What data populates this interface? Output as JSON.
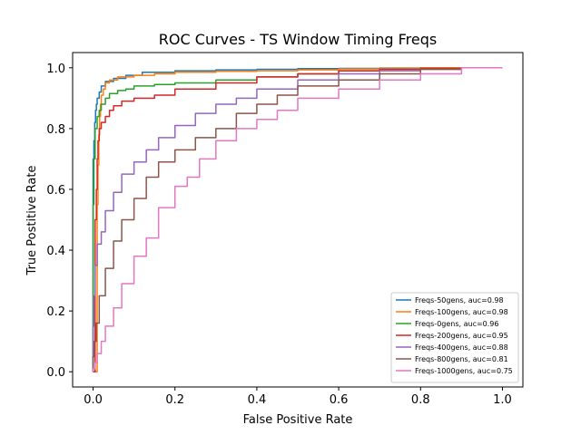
{
  "chart_data": {
    "type": "line",
    "title": "ROC Curves - TS Window Timing Freqs",
    "xlabel": "False Positive Rate",
    "ylabel": "True Postitive Rate",
    "xlim": [
      -0.05,
      1.05
    ],
    "ylim": [
      -0.05,
      1.05
    ],
    "xticks": [
      "0.0",
      "0.2",
      "0.4",
      "0.6",
      "0.8",
      "1.0"
    ],
    "yticks": [
      "0.0",
      "0.2",
      "0.4",
      "0.6",
      "0.8",
      "1.0"
    ],
    "grid": false,
    "legend_position": "lower-right",
    "series": [
      {
        "name": "Freqs-50gens, auc=0.98",
        "color": "#1f77b4",
        "x": [
          0,
          0,
          0.002,
          0.004,
          0.006,
          0.008,
          0.01,
          0.015,
          0.02,
          0.03,
          0.05,
          0.08,
          0.12,
          0.2,
          0.3,
          0.4,
          0.5,
          0.6,
          0.7,
          0.8,
          0.9,
          1.0
        ],
        "y": [
          0,
          0.6,
          0.7,
          0.76,
          0.82,
          0.86,
          0.88,
          0.9,
          0.92,
          0.94,
          0.955,
          0.965,
          0.975,
          0.985,
          0.99,
          0.993,
          0.995,
          0.997,
          0.998,
          0.999,
          1.0,
          1.0
        ]
      },
      {
        "name": "Freqs-100gens, auc=0.98",
        "color": "#ff7f0e",
        "x": [
          0,
          0.01,
          0.012,
          0.014,
          0.016,
          0.018,
          0.02,
          0.025,
          0.03,
          0.04,
          0.06,
          0.1,
          0.15,
          0.2,
          0.3,
          0.4,
          0.5,
          0.6,
          0.7,
          0.8,
          0.9,
          1.0
        ],
        "y": [
          0,
          0.0,
          0.55,
          0.68,
          0.78,
          0.84,
          0.88,
          0.91,
          0.93,
          0.95,
          0.96,
          0.97,
          0.975,
          0.98,
          0.985,
          0.988,
          0.99,
          0.993,
          0.996,
          0.998,
          1.0,
          1.0
        ]
      },
      {
        "name": "Freqs-0gens, auc=0.96",
        "color": "#2ca02c",
        "x": [
          0,
          0,
          0.002,
          0.005,
          0.01,
          0.015,
          0.02,
          0.03,
          0.04,
          0.06,
          0.08,
          0.1,
          0.15,
          0.2,
          0.3,
          0.4,
          0.5,
          0.6,
          0.7,
          0.8,
          0.9,
          1.0
        ],
        "y": [
          0,
          0.3,
          0.55,
          0.7,
          0.8,
          0.84,
          0.86,
          0.88,
          0.9,
          0.915,
          0.925,
          0.93,
          0.94,
          0.945,
          0.95,
          0.96,
          0.97,
          0.98,
          0.99,
          0.995,
          0.998,
          1.0
        ]
      },
      {
        "name": "Freqs-200gens, auc=0.95",
        "color": "#d62728",
        "x": [
          0,
          0.005,
          0.008,
          0.01,
          0.012,
          0.015,
          0.02,
          0.03,
          0.04,
          0.05,
          0.07,
          0.1,
          0.15,
          0.2,
          0.3,
          0.4,
          0.5,
          0.6,
          0.7,
          0.8,
          0.9,
          1.0
        ],
        "y": [
          0,
          0.0,
          0.5,
          0.6,
          0.7,
          0.76,
          0.8,
          0.82,
          0.84,
          0.86,
          0.875,
          0.89,
          0.9,
          0.91,
          0.93,
          0.95,
          0.97,
          0.98,
          0.99,
          0.995,
          0.998,
          1.0
        ]
      },
      {
        "name": "Freqs-400gens, auc=0.88",
        "color": "#9467bd",
        "x": [
          0,
          0.002,
          0.005,
          0.01,
          0.02,
          0.03,
          0.05,
          0.07,
          0.1,
          0.13,
          0.16,
          0.2,
          0.25,
          0.3,
          0.35,
          0.4,
          0.5,
          0.6,
          0.7,
          0.8,
          0.9,
          1.0
        ],
        "y": [
          0,
          0.15,
          0.25,
          0.35,
          0.42,
          0.46,
          0.53,
          0.59,
          0.65,
          0.69,
          0.73,
          0.77,
          0.81,
          0.85,
          0.88,
          0.9,
          0.93,
          0.96,
          0.98,
          0.99,
          0.995,
          1.0
        ]
      },
      {
        "name": "Freqs-800gens, auc=0.81",
        "color": "#8c564b",
        "x": [
          0,
          0.003,
          0.008,
          0.015,
          0.03,
          0.05,
          0.07,
          0.1,
          0.13,
          0.16,
          0.2,
          0.25,
          0.3,
          0.35,
          0.4,
          0.45,
          0.5,
          0.6,
          0.7,
          0.8,
          0.9,
          1.0
        ],
        "y": [
          0,
          0.05,
          0.1,
          0.16,
          0.25,
          0.34,
          0.43,
          0.5,
          0.57,
          0.64,
          0.69,
          0.73,
          0.77,
          0.8,
          0.85,
          0.88,
          0.91,
          0.94,
          0.96,
          0.98,
          0.995,
          1.0
        ]
      },
      {
        "name": "Freqs-1000gens, auc=0.75",
        "color": "#e377c2",
        "x": [
          0,
          0.005,
          0.01,
          0.02,
          0.03,
          0.05,
          0.07,
          0.1,
          0.13,
          0.16,
          0.2,
          0.23,
          0.26,
          0.3,
          0.35,
          0.4,
          0.45,
          0.5,
          0.6,
          0.7,
          0.8,
          0.9,
          1.0
        ],
        "y": [
          0,
          0.01,
          0.03,
          0.06,
          0.1,
          0.15,
          0.21,
          0.29,
          0.38,
          0.44,
          0.54,
          0.61,
          0.64,
          0.7,
          0.76,
          0.8,
          0.83,
          0.86,
          0.9,
          0.93,
          0.96,
          0.98,
          1.0
        ]
      }
    ]
  }
}
